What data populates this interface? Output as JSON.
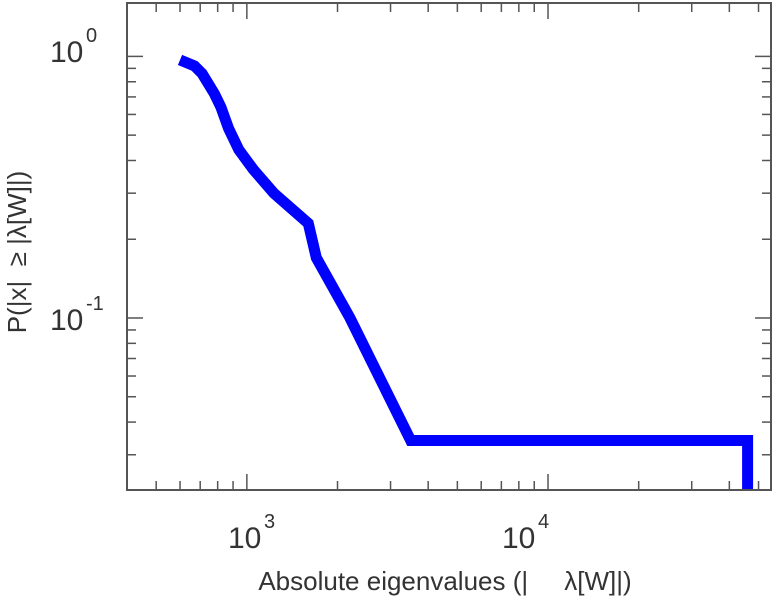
{
  "chart_data": {
    "type": "line",
    "step": true,
    "xscale": "log",
    "yscale": "log",
    "xlim": [
      400,
      55000
    ],
    "ylim": [
      0.022,
      1.6
    ],
    "grid": false,
    "xlabel": "Absolute eigenvalues (|     λ[W]|)",
    "ylabel": "P(|x|  ≥ |λ[W]|)",
    "x_ticks": [
      {
        "base": "10",
        "exp": "3",
        "value": 1000
      },
      {
        "base": "10",
        "exp": "4",
        "value": 10000
      }
    ],
    "y_ticks": [
      {
        "base": "10",
        "exp": "0",
        "value": 1
      },
      {
        "base": "10",
        "exp": "-1",
        "value": 0.1
      }
    ],
    "color": "#0000ff",
    "x": [
      600,
      670,
      710,
      780,
      820,
      870,
      940,
      1050,
      1230,
      1600,
      1700,
      2200,
      3500,
      46000,
      46000
    ],
    "y": [
      0.97,
      0.92,
      0.86,
      0.72,
      0.64,
      0.53,
      0.44,
      0.37,
      0.3,
      0.23,
      0.17,
      0.1,
      0.034,
      0.034,
      0.022
    ]
  }
}
